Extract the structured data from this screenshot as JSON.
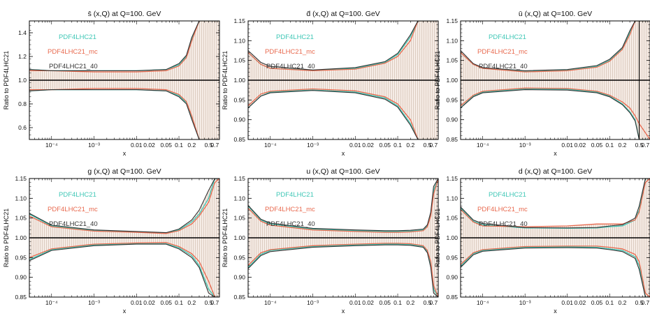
{
  "figure": {
    "colors": {
      "cyan": "#3fc7b6",
      "red": "#e8694e",
      "dark": "#333333",
      "hatch": "#b59a88",
      "hatchBg": "#f6ece6",
      "axis": "#000000"
    }
  },
  "chart_data": [
    {
      "type": "area",
      "title": "s̄ (x,Q) at Q=100. GeV",
      "xlabel": "x",
      "ylabel": "Ratio to PDF4LHC21",
      "xscale": "log",
      "xlim": [
        3e-05,
        0.9
      ],
      "ylim": [
        0.5,
        1.5
      ],
      "yticks": [
        "0.6",
        "0.8",
        "1.0",
        "1.2",
        "1.4"
      ],
      "ytick_values": [
        0.6,
        0.8,
        1.0,
        1.2,
        1.4
      ],
      "xticks": [
        "10⁻⁴",
        "10⁻³",
        "0.01",
        "0.02",
        "0.05",
        "0.1",
        "0.2",
        "0.5",
        "0.7"
      ],
      "xtick_values": [
        0.0001,
        0.001,
        0.01,
        0.02,
        0.05,
        0.1,
        0.2,
        0.5,
        0.7
      ],
      "legend": [
        "PDF4LHC21",
        "PDF4LHC21_mc",
        "PDF4LHC21_40"
      ],
      "x": [
        3e-05,
        0.0001,
        0.001,
        0.01,
        0.05,
        0.1,
        0.15,
        0.2,
        0.3,
        0.5,
        0.9
      ],
      "series": [
        {
          "name": "PDF4LHC21",
          "upper": [
            1.09,
            1.08,
            1.08,
            1.08,
            1.09,
            1.13,
            1.2,
            1.35,
            1.5,
            1.5,
            1.5
          ],
          "lower": [
            0.91,
            0.92,
            0.92,
            0.92,
            0.91,
            0.87,
            0.81,
            0.68,
            0.5,
            0.5,
            0.5
          ]
        },
        {
          "name": "PDF4LHC21_mc",
          "upper": [
            1.08,
            1.08,
            1.07,
            1.07,
            1.08,
            1.12,
            1.19,
            1.33,
            1.5,
            1.5,
            1.5
          ],
          "lower": [
            0.92,
            0.92,
            0.93,
            0.93,
            0.92,
            0.88,
            0.82,
            0.7,
            0.5,
            0.5,
            0.5
          ]
        },
        {
          "name": "PDF4LHC21_40",
          "upper": [
            1.09,
            1.08,
            1.08,
            1.08,
            1.09,
            1.14,
            1.21,
            1.36,
            1.5,
            1.5,
            1.5
          ],
          "lower": [
            0.91,
            0.92,
            0.92,
            0.92,
            0.91,
            0.86,
            0.8,
            0.67,
            0.5,
            0.5,
            0.5
          ]
        }
      ]
    },
    {
      "type": "area",
      "title": "d̄ (x,Q) at Q=100. GeV",
      "xlabel": "x",
      "ylabel": "Ratio to PDF4LHC21",
      "xscale": "log",
      "xlim": [
        3e-05,
        0.9
      ],
      "ylim": [
        0.85,
        1.15
      ],
      "yticks": [
        "0.85",
        "0.90",
        "0.95",
        "1.00",
        "1.05",
        "1.10",
        "1.15"
      ],
      "ytick_values": [
        0.85,
        0.9,
        0.95,
        1.0,
        1.05,
        1.1,
        1.15
      ],
      "xticks": [
        "10⁻⁴",
        "10⁻³",
        "0.01",
        "0.02",
        "0.05",
        "0.1",
        "0.2",
        "0.5",
        "0.7"
      ],
      "xtick_values": [
        0.0001,
        0.001,
        0.01,
        0.02,
        0.05,
        0.1,
        0.2,
        0.5,
        0.7
      ],
      "legend": [
        "PDF4LHC21",
        "PDF4LHC21_mc",
        "PDF4LHC21_40"
      ],
      "x": [
        3e-05,
        6e-05,
        0.0001,
        0.001,
        0.01,
        0.05,
        0.1,
        0.2,
        0.3,
        0.5,
        0.9
      ],
      "series": [
        {
          "name": "PDF4LHC21",
          "upper": [
            1.07,
            1.04,
            1.03,
            1.025,
            1.03,
            1.045,
            1.065,
            1.11,
            1.15,
            1.15,
            1.15
          ],
          "lower": [
            0.93,
            0.96,
            0.97,
            0.975,
            0.97,
            0.955,
            0.935,
            0.89,
            0.85,
            0.85,
            0.85
          ]
        },
        {
          "name": "PDF4LHC21_mc",
          "upper": [
            1.07,
            1.04,
            1.03,
            1.024,
            1.028,
            1.043,
            1.06,
            1.1,
            1.15,
            1.15,
            1.15
          ],
          "lower": [
            0.935,
            0.965,
            0.972,
            0.978,
            0.973,
            0.958,
            0.94,
            0.9,
            0.85,
            0.85,
            0.85
          ]
        },
        {
          "name": "PDF4LHC21_40",
          "upper": [
            1.075,
            1.045,
            1.035,
            1.026,
            1.032,
            1.047,
            1.068,
            1.115,
            1.15,
            1.15,
            1.15
          ],
          "lower": [
            0.93,
            0.96,
            0.968,
            0.974,
            0.968,
            0.952,
            0.932,
            0.886,
            0.85,
            0.85,
            0.85
          ]
        }
      ]
    },
    {
      "type": "area",
      "title": "ū (x,Q) at Q=100. GeV",
      "xlabel": "x",
      "ylabel": "Ratio to PDF4LHC21",
      "xscale": "log",
      "xlim": [
        3e-05,
        0.9
      ],
      "ylim": [
        0.85,
        1.15
      ],
      "yticks": [
        "0.85",
        "0.90",
        "0.95",
        "1.00",
        "1.05",
        "1.10",
        "1.15"
      ],
      "ytick_values": [
        0.85,
        0.9,
        0.95,
        1.0,
        1.05,
        1.1,
        1.15
      ],
      "xticks": [
        "10⁻⁴",
        "10⁻³",
        "0.01",
        "0.02",
        "0.05",
        "0.1",
        "0.2",
        "0.5",
        "0.7"
      ],
      "xtick_values": [
        0.0001,
        0.001,
        0.01,
        0.02,
        0.05,
        0.1,
        0.2,
        0.5,
        0.7
      ],
      "legend": [
        "PDF4LHC21",
        "PDF4LHC21_mc",
        "PDF4LHC21_40"
      ],
      "vline_x": 0.5,
      "x": [
        3e-05,
        6e-05,
        0.0001,
        0.001,
        0.01,
        0.05,
        0.1,
        0.2,
        0.3,
        0.4,
        0.5,
        0.9
      ],
      "series": [
        {
          "name": "PDF4LHC21",
          "upper": [
            1.07,
            1.04,
            1.03,
            1.022,
            1.025,
            1.035,
            1.05,
            1.08,
            1.12,
            1.15,
            1.15,
            1.15
          ],
          "lower": [
            0.93,
            0.96,
            0.97,
            0.978,
            0.977,
            0.97,
            0.96,
            0.94,
            0.92,
            0.9,
            0.85,
            0.85
          ]
        },
        {
          "name": "PDF4LHC21_mc",
          "upper": [
            1.07,
            1.04,
            1.03,
            1.021,
            1.024,
            1.033,
            1.048,
            1.078,
            1.115,
            1.15,
            1.15,
            1.15
          ],
          "lower": [
            0.935,
            0.962,
            0.972,
            0.98,
            0.979,
            0.972,
            0.962,
            0.945,
            0.93,
            0.91,
            0.89,
            0.85
          ]
        },
        {
          "name": "PDF4LHC21_40",
          "upper": [
            1.075,
            1.042,
            1.032,
            1.024,
            1.027,
            1.037,
            1.053,
            1.083,
            1.125,
            1.15,
            1.15,
            1.15
          ],
          "lower": [
            0.93,
            0.958,
            0.968,
            0.976,
            0.975,
            0.968,
            0.958,
            0.938,
            0.918,
            0.897,
            0.85,
            0.85
          ]
        }
      ]
    },
    {
      "type": "area",
      "title": "g (x,Q) at Q=100. GeV",
      "xlabel": "x",
      "ylabel": "Ratio to PDF4LHC21",
      "xscale": "log",
      "xlim": [
        3e-05,
        0.9
      ],
      "ylim": [
        0.85,
        1.15
      ],
      "yticks": [
        "0.85",
        "0.90",
        "0.95",
        "1.00",
        "1.05",
        "1.10",
        "1.15"
      ],
      "ytick_values": [
        0.85,
        0.9,
        0.95,
        1.0,
        1.05,
        1.1,
        1.15
      ],
      "xticks": [
        "10⁻⁴",
        "10⁻³",
        "0.01",
        "0.02",
        "0.05",
        "0.1",
        "0.2",
        "0.5",
        "0.7"
      ],
      "xtick_values": [
        0.0001,
        0.001,
        0.01,
        0.02,
        0.05,
        0.1,
        0.2,
        0.5,
        0.7
      ],
      "legend": [
        "PDF4LHC21",
        "PDF4LHC21_mc",
        "PDF4LHC21_40"
      ],
      "x": [
        3e-05,
        0.0001,
        0.001,
        0.01,
        0.05,
        0.1,
        0.2,
        0.3,
        0.5,
        0.7,
        0.9
      ],
      "series": [
        {
          "name": "PDF4LHC21",
          "upper": [
            1.06,
            1.03,
            1.018,
            1.015,
            1.012,
            1.02,
            1.04,
            1.06,
            1.1,
            1.15,
            1.15
          ],
          "lower": [
            0.945,
            0.97,
            0.982,
            0.985,
            0.985,
            0.975,
            0.955,
            0.93,
            0.87,
            0.85,
            0.85
          ]
        },
        {
          "name": "PDF4LHC21_mc",
          "upper": [
            1.055,
            1.028,
            1.017,
            1.014,
            1.011,
            1.018,
            1.035,
            1.055,
            1.09,
            1.14,
            1.15
          ],
          "lower": [
            0.95,
            0.972,
            0.984,
            0.987,
            0.988,
            0.978,
            0.96,
            0.94,
            0.89,
            0.85,
            0.85
          ]
        },
        {
          "name": "PDF4LHC21_40",
          "upper": [
            1.062,
            1.032,
            1.02,
            1.016,
            1.013,
            1.022,
            1.045,
            1.07,
            1.12,
            1.15,
            1.15
          ],
          "lower": [
            0.942,
            0.968,
            0.98,
            0.984,
            0.984,
            0.972,
            0.95,
            0.925,
            0.86,
            0.85,
            0.85
          ]
        }
      ]
    },
    {
      "type": "area",
      "title": "u (x,Q) at Q=100. GeV",
      "xlabel": "x",
      "ylabel": "Ratio to PDF4LHC21",
      "xscale": "log",
      "xlim": [
        3e-05,
        0.9
      ],
      "ylim": [
        0.85,
        1.15
      ],
      "yticks": [
        "0.85",
        "0.90",
        "0.95",
        "1.00",
        "1.05",
        "1.10",
        "1.15"
      ],
      "ytick_values": [
        0.85,
        0.9,
        0.95,
        1.0,
        1.05,
        1.1,
        1.15
      ],
      "xticks": [
        "10⁻⁴",
        "10⁻³",
        "0.01",
        "0.02",
        "0.05",
        "0.1",
        "0.2",
        "0.5",
        "0.7"
      ],
      "xtick_values": [
        0.0001,
        0.001,
        0.01,
        0.02,
        0.05,
        0.1,
        0.2,
        0.5,
        0.7
      ],
      "legend": [
        "PDF4LHC21",
        "PDF4LHC21_mc",
        "PDF4LHC21_40"
      ],
      "x": [
        3e-05,
        6e-05,
        0.0001,
        0.001,
        0.01,
        0.05,
        0.1,
        0.2,
        0.4,
        0.5,
        0.6,
        0.7,
        0.9
      ],
      "series": [
        {
          "name": "PDF4LHC21",
          "upper": [
            1.08,
            1.045,
            1.035,
            1.022,
            1.018,
            1.016,
            1.016,
            1.017,
            1.02,
            1.03,
            1.06,
            1.12,
            1.15
          ],
          "lower": [
            0.925,
            0.958,
            0.968,
            0.978,
            0.982,
            0.984,
            0.984,
            0.983,
            0.978,
            0.965,
            0.93,
            0.87,
            0.85
          ]
        },
        {
          "name": "PDF4LHC21_mc",
          "upper": [
            1.075,
            1.042,
            1.032,
            1.02,
            1.016,
            1.014,
            1.014,
            1.015,
            1.018,
            1.028,
            1.055,
            1.11,
            1.15
          ],
          "lower": [
            0.93,
            0.962,
            0.97,
            0.98,
            0.984,
            0.986,
            0.986,
            0.985,
            0.98,
            0.968,
            0.94,
            0.88,
            0.85
          ]
        },
        {
          "name": "PDF4LHC21_40",
          "upper": [
            1.082,
            1.047,
            1.037,
            1.024,
            1.02,
            1.018,
            1.018,
            1.019,
            1.022,
            1.033,
            1.065,
            1.13,
            1.15
          ],
          "lower": [
            0.922,
            0.955,
            0.965,
            0.976,
            0.98,
            0.982,
            0.982,
            0.981,
            0.976,
            0.962,
            0.925,
            0.86,
            0.85
          ]
        }
      ]
    },
    {
      "type": "area",
      "title": "d (x,Q) at Q=100. GeV",
      "xlabel": "x",
      "ylabel": "Ratio to PDF4LHC21",
      "xscale": "log",
      "xlim": [
        3e-05,
        0.9
      ],
      "ylim": [
        0.85,
        1.15
      ],
      "yticks": [
        "0.85",
        "0.90",
        "0.95",
        "1.00",
        "1.05",
        "1.10",
        "1.15"
      ],
      "ytick_values": [
        0.85,
        0.9,
        0.95,
        1.0,
        1.05,
        1.1,
        1.15
      ],
      "xticks": [
        "10⁻⁴",
        "10⁻³",
        "0.01",
        "0.02",
        "0.05",
        "0.1",
        "0.2",
        "0.5",
        "0.7"
      ],
      "xtick_values": [
        0.0001,
        0.001,
        0.01,
        0.02,
        0.05,
        0.1,
        0.2,
        0.5,
        0.7
      ],
      "legend": [
        "PDF4LHC21",
        "PDF4LHC21_mc",
        "PDF4LHC21_40"
      ],
      "x": [
        3e-05,
        6e-05,
        0.0001,
        0.001,
        0.01,
        0.05,
        0.1,
        0.2,
        0.4,
        0.5,
        0.7,
        0.9
      ],
      "series": [
        {
          "name": "PDF4LHC21",
          "upper": [
            1.075,
            1.042,
            1.033,
            1.025,
            1.024,
            1.025,
            1.028,
            1.03,
            1.045,
            1.07,
            1.15,
            1.15
          ],
          "lower": [
            0.928,
            0.96,
            0.968,
            0.976,
            0.977,
            0.976,
            0.972,
            0.968,
            0.952,
            0.93,
            0.85,
            0.85
          ]
        },
        {
          "name": "PDF4LHC21_mc",
          "upper": [
            1.072,
            1.04,
            1.03,
            1.028,
            1.03,
            1.035,
            1.035,
            1.035,
            1.045,
            1.065,
            1.14,
            1.15
          ],
          "lower": [
            0.932,
            0.962,
            0.97,
            0.978,
            0.979,
            0.979,
            0.976,
            0.972,
            0.958,
            0.94,
            0.86,
            0.85
          ]
        },
        {
          "name": "PDF4LHC21_40",
          "upper": [
            1.078,
            1.045,
            1.036,
            1.026,
            1.025,
            1.026,
            1.03,
            1.033,
            1.05,
            1.08,
            1.15,
            1.15
          ],
          "lower": [
            0.925,
            0.957,
            0.966,
            0.974,
            0.975,
            0.974,
            0.97,
            0.965,
            0.948,
            0.92,
            0.85,
            0.85
          ]
        }
      ]
    }
  ]
}
